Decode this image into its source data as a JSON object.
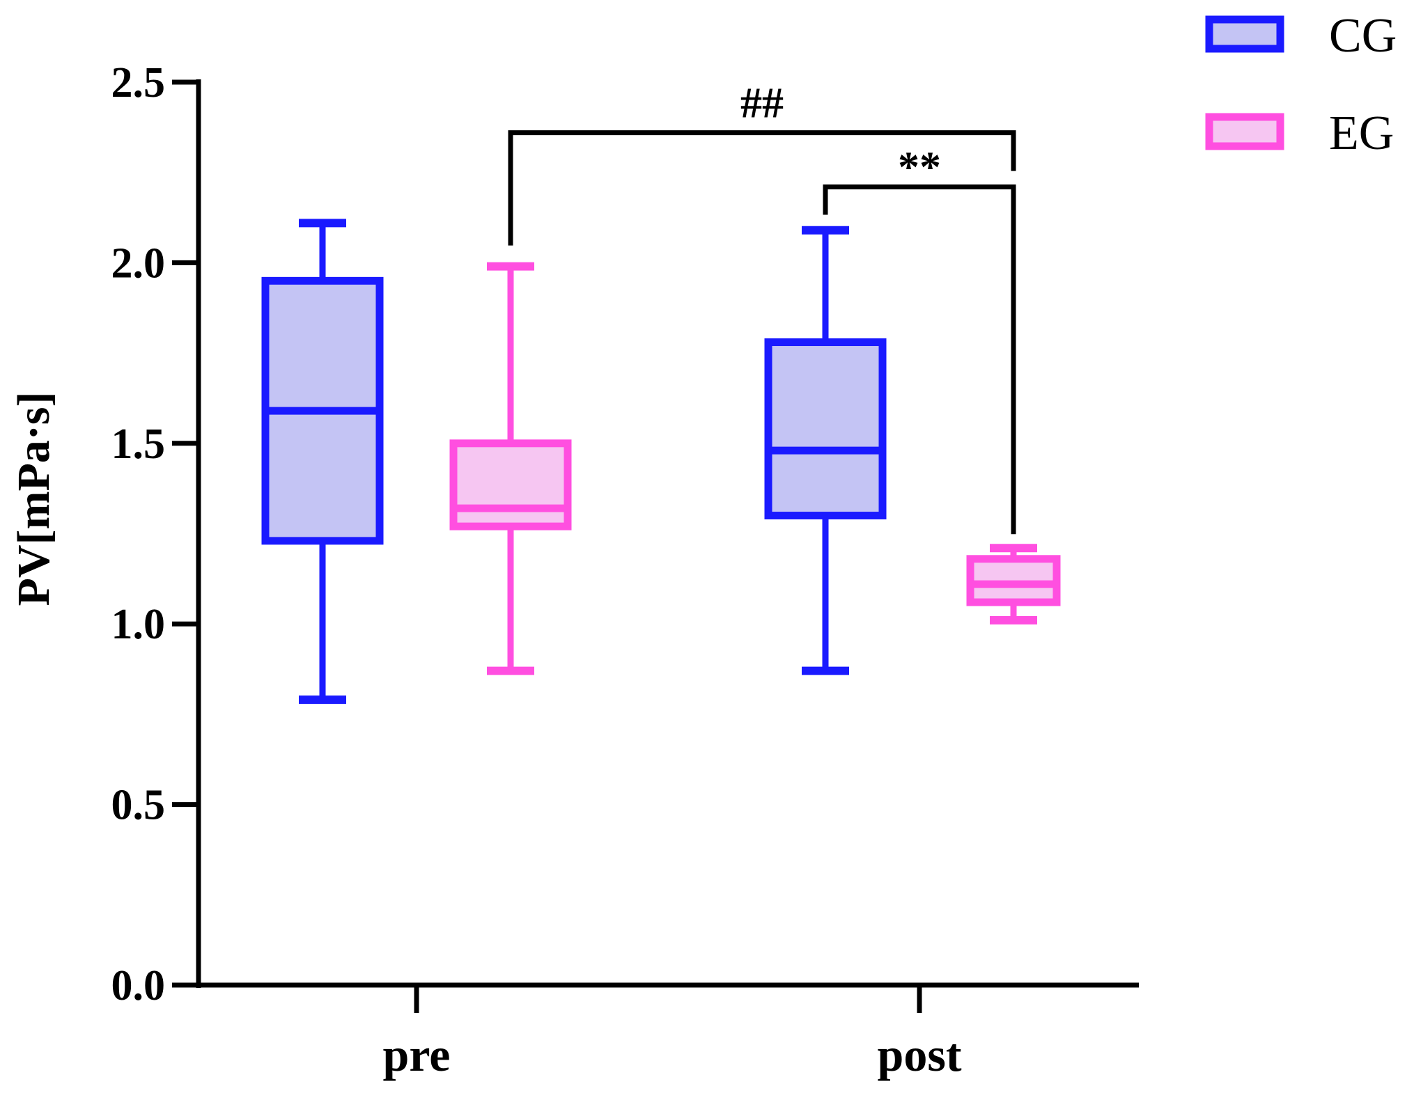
{
  "chart_data": {
    "type": "box",
    "ylabel": "PV[mPa·s]",
    "xlabel": "",
    "ylim": [
      0,
      2.5
    ],
    "yticks": [
      "0.0",
      "0.5",
      "1.0",
      "1.5",
      "2.0",
      "2.5"
    ],
    "categories": [
      "pre",
      "post"
    ],
    "grid": false,
    "legend_position": "top-right",
    "series": [
      {
        "name": "CG",
        "color": "#1a1aff",
        "fill": "#c4c4f4",
        "boxes": [
          {
            "min": 0.79,
            "q1": 1.23,
            "median": 1.59,
            "q3": 1.95,
            "max": 2.11
          },
          {
            "min": 0.87,
            "q1": 1.3,
            "median": 1.48,
            "q3": 1.78,
            "max": 2.09
          }
        ]
      },
      {
        "name": "EG",
        "color": "#ff4fe0",
        "fill": "#f6c6f2",
        "boxes": [
          {
            "min": 0.87,
            "q1": 1.27,
            "median": 1.32,
            "q3": 1.5,
            "max": 1.99
          },
          {
            "min": 1.01,
            "q1": 1.06,
            "median": 1.11,
            "q3": 1.18,
            "max": 1.21
          }
        ]
      }
    ],
    "annotations": [
      {
        "label": "##",
        "from": {
          "category": "pre",
          "series": "EG"
        },
        "to": {
          "category": "post",
          "series": "EG"
        },
        "y": 2.36
      },
      {
        "label": "**",
        "from": {
          "category": "post",
          "series": "CG"
        },
        "to": {
          "category": "post",
          "series": "EG"
        },
        "y": 2.21
      }
    ]
  }
}
